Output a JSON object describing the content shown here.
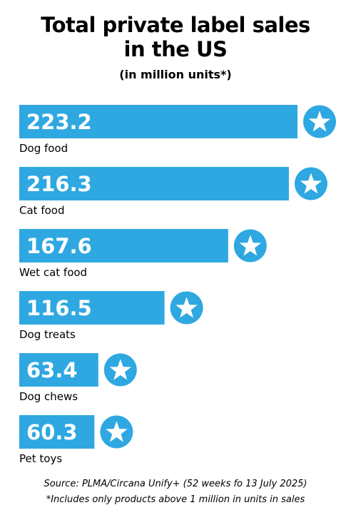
{
  "chart_data": {
    "type": "bar",
    "orientation": "horizontal",
    "title": "Total private label sales in the US",
    "title_lines": [
      "Total private label sales",
      "in the US"
    ],
    "subtitle": "(in million units*)",
    "categories": [
      "Dog food",
      "Cat food",
      "Wet cat food",
      "Dog treats",
      "Dog chews",
      "Pet toys"
    ],
    "values": [
      223.2,
      216.3,
      167.6,
      116.5,
      63.4,
      60.3
    ],
    "value_labels": [
      "223.2",
      "216.3",
      "167.6",
      "116.5",
      "63.4",
      "60.3"
    ],
    "marker": "star-icon",
    "grid": false,
    "legend": "none",
    "source": "Source: PLMA/Circana Unify+ (52 weeks fo 13 July 2025)",
    "note": "*Includes only products above 1 million in units in sales"
  },
  "colors": {
    "bar": "#2fa8e1",
    "star": "#ffffff",
    "text": "#000000"
  }
}
